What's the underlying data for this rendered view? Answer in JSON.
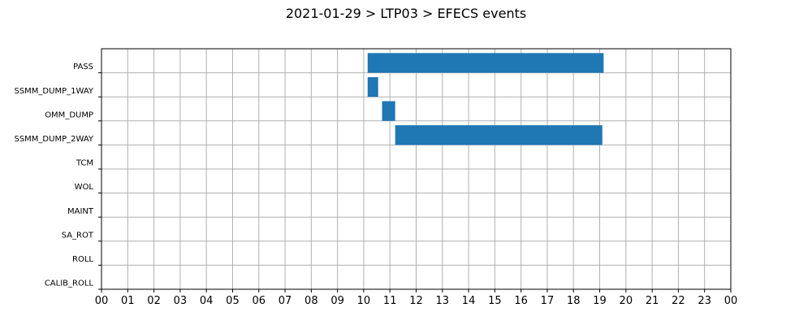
{
  "chart_data": {
    "type": "bar",
    "orientation": "horizontal-timeline",
    "title": "2021-01-29 > LTP03 > EFECS events",
    "xlabel": "",
    "ylabel": "",
    "x_unit": "hour",
    "xlim": [
      0,
      24
    ],
    "x_tick_labels": [
      "00",
      "01",
      "02",
      "03",
      "04",
      "05",
      "06",
      "07",
      "08",
      "09",
      "10",
      "11",
      "12",
      "13",
      "14",
      "15",
      "16",
      "17",
      "18",
      "19",
      "20",
      "21",
      "22",
      "23",
      "00"
    ],
    "categories": [
      "PASS",
      "SSMM_DUMP_1WAY",
      "OMM_DUMP",
      "SSMM_DUMP_2WAY",
      "TCM",
      "WOL",
      "MAINT",
      "SA_ROT",
      "ROLL",
      "CALIB_ROLL"
    ],
    "series": [
      {
        "color": "#1f77b4",
        "events": [
          {
            "category": "PASS",
            "start": 10.15,
            "end": 19.15
          },
          {
            "category": "SSMM_DUMP_1WAY",
            "start": 10.15,
            "end": 10.55
          },
          {
            "category": "OMM_DUMP",
            "start": 10.7,
            "end": 11.2
          },
          {
            "category": "SSMM_DUMP_2WAY",
            "start": 11.2,
            "end": 19.1
          }
        ]
      }
    ],
    "grid": true,
    "legend": "none"
  }
}
